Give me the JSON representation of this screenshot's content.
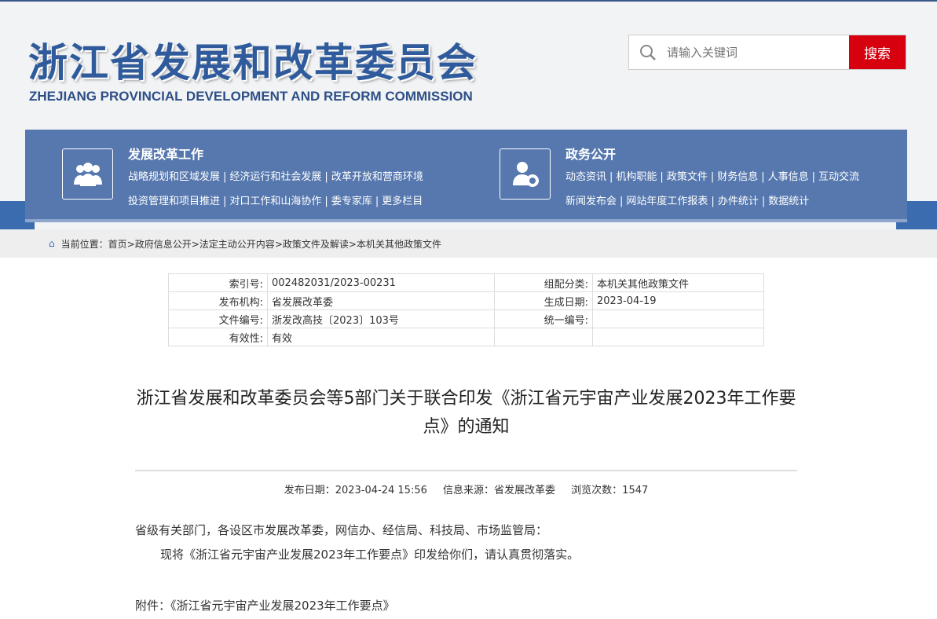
{
  "header": {
    "title_cn": "浙江省发展和改革委员会",
    "title_en": "ZHEJIANG PROVINCIAL DEVELOPMENT AND REFORM COMMISSION"
  },
  "search": {
    "placeholder": "请输入关键词",
    "button": "搜索",
    "icon": "search-icon"
  },
  "nav": [
    {
      "title": "发展改革工作",
      "icon": "people-icon",
      "rows": [
        [
          "战略规划和区域发展",
          "经济运行和社会发展",
          "改革开放和营商环境"
        ],
        [
          "投资管理和项目推进",
          "对口工作和山海协作",
          "委专家库",
          "更多栏目"
        ]
      ]
    },
    {
      "title": "政务公开",
      "icon": "user-gear-icon",
      "rows": [
        [
          "动态资讯",
          "机构职能",
          "政策文件",
          "财务信息",
          "人事信息",
          "互动交流"
        ],
        [
          "新闻发布会",
          "网站年度工作报表",
          "办件统计",
          "数据统计"
        ]
      ]
    }
  ],
  "breadcrumb": {
    "label": "当前位置：",
    "items": [
      "首页",
      "政府信息公开",
      "法定主动公开内容",
      "政策文件及解读",
      "本机关其他政策文件"
    ]
  },
  "meta": [
    [
      "索引号:",
      "002482031/2023-00231",
      "组配分类:",
      "本机关其他政策文件"
    ],
    [
      "发布机构:",
      "省发展改革委",
      "生成日期:",
      "2023-04-19"
    ],
    [
      "文件编号:",
      "浙发改高技〔2023〕103号",
      "统一编号:",
      ""
    ],
    [
      "有效性:",
      "有效",
      "",
      ""
    ]
  ],
  "article": {
    "title": "浙江省发展和改革委员会等5部门关于联合印发《浙江省元宇宙产业发展2023年工作要点》的通知",
    "date": "发布日期：2023-04-24 15:56",
    "source": "信息来源：省发展改革委",
    "views": "浏览次数：1547",
    "p1": "省级有关部门，各设区市发展改革委，网信办、经信局、科技局、市场监管局：",
    "p2": "现将《浙江省元宇宙产业发展2023年工作要点》印发给你们，请认真贯彻落实。",
    "p3": "附件：《浙江省元宇宙产业发展2023年工作要点》"
  },
  "colors": {
    "brand": "#2f5b9c",
    "nav": "#5678ae",
    "search_button": "#d7000f"
  }
}
